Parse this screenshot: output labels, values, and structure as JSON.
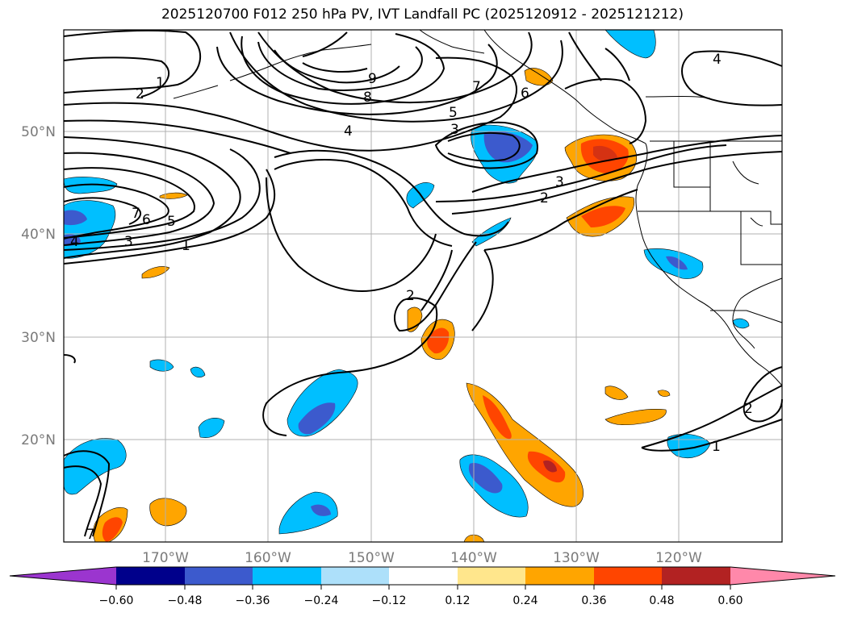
{
  "title": "2025120700 F012 250 hPa PV, IVT Landfall PC (2025120912 - 2025121212)",
  "lat_labels": [
    "50°N",
    "40°N",
    "30°N",
    "20°N"
  ],
  "lon_labels": [
    "170°W",
    "160°W",
    "150°W",
    "140°W",
    "130°W",
    "120°W"
  ],
  "colorbar": {
    "colors": [
      "#9b35cf",
      "#00008b",
      "#3c5acd",
      "#00bfff",
      "#ade0fa",
      "#ffffff",
      "#ffe68c",
      "#ffa500",
      "#ff4500",
      "#b22222",
      "#ff88aa"
    ],
    "ticks": [
      "−0.60",
      "−0.48",
      "−0.36",
      "−0.24",
      "−0.12",
      "0.12",
      "0.24",
      "0.36",
      "0.48",
      "0.60"
    ]
  },
  "contour_labels": [
    "9",
    "8",
    "7",
    "6",
    "5",
    "4",
    "3",
    "2",
    "1",
    "2",
    "1",
    "4",
    "3",
    "2",
    "7",
    "6",
    "5",
    "4",
    "3",
    "1",
    "2",
    "2",
    "1",
    "7"
  ],
  "palette": {
    "frame": "#000000",
    "grid": "#b0b0b0",
    "coast": "#000000"
  }
}
